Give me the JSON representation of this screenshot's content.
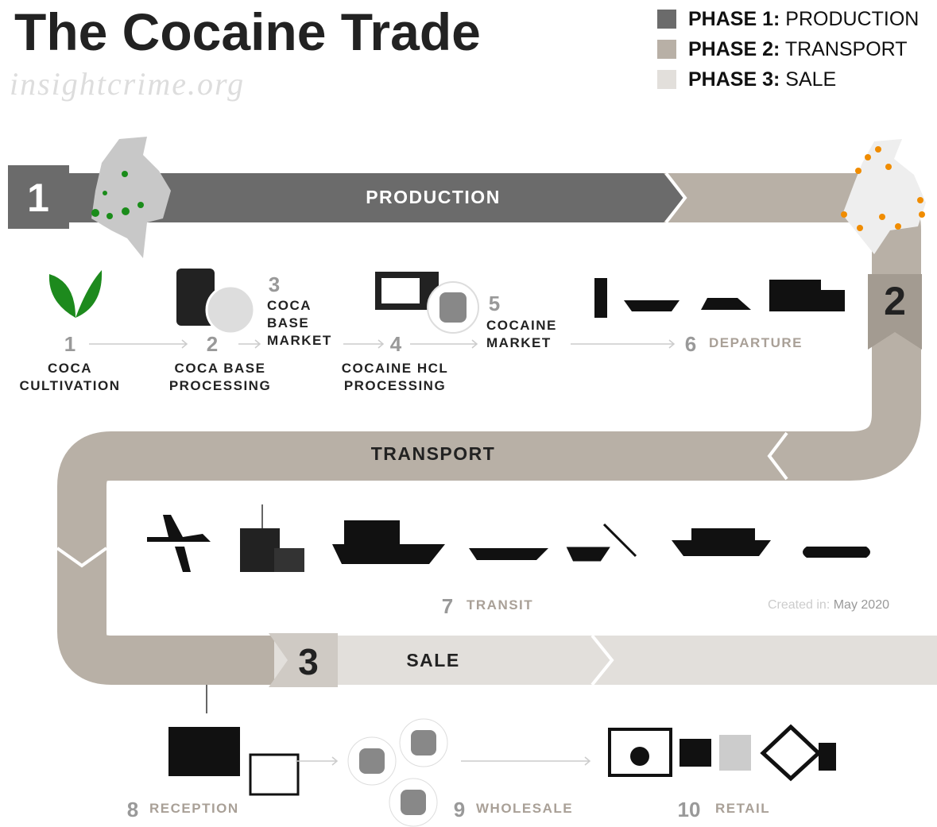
{
  "header": {
    "title": "The Cocaine Trade",
    "source": "insightcrime.org"
  },
  "legend": [
    {
      "phase": "PHASE 1:",
      "name": "PRODUCTION",
      "color": "#6b6b6b"
    },
    {
      "phase": "PHASE 2:",
      "name": "TRANSPORT",
      "color": "#b8b0a6"
    },
    {
      "phase": "PHASE 3:",
      "name": "SALE",
      "color": "#e2dfdb"
    }
  ],
  "phases": [
    {
      "number": 1,
      "label": "PRODUCTION"
    },
    {
      "number": 2,
      "label": "TRANSPORT"
    },
    {
      "number": 3,
      "label": "SALE"
    }
  ],
  "steps": [
    {
      "number": 1,
      "label": [
        "COCA",
        "CULTIVATION"
      ]
    },
    {
      "number": 2,
      "label": [
        "COCA BASE",
        "PROCESSING"
      ]
    },
    {
      "number": 3,
      "label": [
        "COCA",
        "BASE",
        "MARKET"
      ]
    },
    {
      "number": 4,
      "label": [
        "COCAINE HCL",
        "PROCESSING"
      ]
    },
    {
      "number": 5,
      "label": [
        "COCAINE",
        "MARKET"
      ]
    },
    {
      "number": 6,
      "label": [
        "DEPARTURE"
      ]
    },
    {
      "number": 7,
      "label": [
        "TRANSIT"
      ]
    },
    {
      "number": 8,
      "label": [
        "RECEPTION"
      ]
    },
    {
      "number": 9,
      "label": [
        "WHOLESALE"
      ]
    },
    {
      "number": 10,
      "label": [
        "RETAIL"
      ]
    }
  ],
  "footer": {
    "created_label": "Created in:",
    "created_date": "May 2020"
  }
}
